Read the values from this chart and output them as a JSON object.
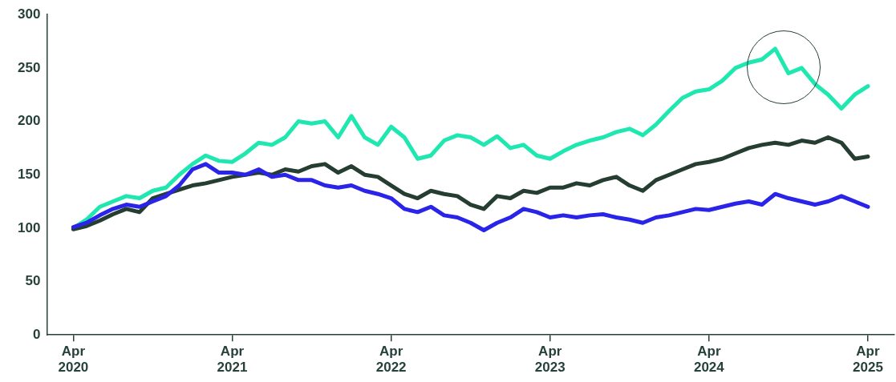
{
  "chart_data": {
    "type": "line",
    "x": [
      "2020-04",
      "2020-05",
      "2020-06",
      "2020-07",
      "2020-08",
      "2020-09",
      "2020-10",
      "2020-11",
      "2020-12",
      "2021-01",
      "2021-02",
      "2021-03",
      "2021-04",
      "2021-05",
      "2021-06",
      "2021-07",
      "2021-08",
      "2021-09",
      "2021-10",
      "2021-11",
      "2021-12",
      "2022-01",
      "2022-02",
      "2022-03",
      "2022-04",
      "2022-05",
      "2022-06",
      "2022-07",
      "2022-08",
      "2022-09",
      "2022-10",
      "2022-11",
      "2022-12",
      "2023-01",
      "2023-02",
      "2023-03",
      "2023-04",
      "2023-05",
      "2023-06",
      "2023-07",
      "2023-08",
      "2023-09",
      "2023-10",
      "2023-11",
      "2023-12",
      "2024-01",
      "2024-02",
      "2024-03",
      "2024-04",
      "2024-05",
      "2024-06",
      "2024-07",
      "2024-08",
      "2024-09",
      "2024-10",
      "2024-11",
      "2024-12",
      "2025-01",
      "2025-02",
      "2025-03",
      "2025-04"
    ],
    "series": [
      {
        "color": "#1ee8b0",
        "values": [
          100,
          108,
          120,
          125,
          130,
          128,
          135,
          138,
          150,
          160,
          168,
          163,
          162,
          170,
          180,
          178,
          185,
          200,
          198,
          200,
          185,
          205,
          185,
          178,
          195,
          185,
          165,
          168,
          182,
          187,
          185,
          178,
          186,
          175,
          178,
          168,
          165,
          172,
          178,
          182,
          185,
          190,
          193,
          187,
          197,
          210,
          222,
          228,
          230,
          238,
          250,
          255,
          258,
          268,
          245,
          250,
          235,
          225,
          212,
          225,
          233
        ]
      },
      {
        "color": "#263d32",
        "values": [
          99,
          102,
          107,
          113,
          118,
          115,
          128,
          132,
          136,
          140,
          142,
          145,
          148,
          150,
          152,
          150,
          155,
          153,
          158,
          160,
          152,
          158,
          150,
          148,
          140,
          132,
          128,
          135,
          132,
          130,
          122,
          118,
          130,
          128,
          135,
          133,
          138,
          138,
          142,
          140,
          145,
          148,
          140,
          135,
          145,
          150,
          155,
          160,
          162,
          165,
          170,
          175,
          178,
          180,
          178,
          182,
          180,
          185,
          180,
          165,
          167
        ]
      },
      {
        "color": "#2a24e8",
        "values": [
          101,
          105,
          112,
          118,
          122,
          120,
          125,
          130,
          140,
          155,
          160,
          152,
          152,
          150,
          155,
          148,
          150,
          145,
          145,
          140,
          138,
          140,
          135,
          132,
          128,
          118,
          115,
          120,
          112,
          110,
          105,
          98,
          105,
          110,
          118,
          115,
          110,
          112,
          110,
          112,
          113,
          110,
          108,
          105,
          110,
          112,
          115,
          118,
          117,
          120,
          123,
          125,
          122,
          132,
          128,
          125,
          122,
          125,
          130,
          125,
          120
        ]
      }
    ],
    "xlim": [
      "2020-02",
      "2025-06"
    ],
    "xticks": [
      {
        "value": "2020-04",
        "label": "Apr 2020"
      },
      {
        "value": "2021-04",
        "label": "Apr 2021"
      },
      {
        "value": "2022-04",
        "label": "Apr 2022"
      },
      {
        "value": "2023-04",
        "label": "Apr 2023"
      },
      {
        "value": "2024-04",
        "label": "Apr 2024"
      },
      {
        "value": "2025-04",
        "label": "Apr 2025"
      }
    ],
    "ylim": [
      0,
      300
    ],
    "yticks": [
      0,
      50,
      100,
      150,
      200,
      250,
      300
    ],
    "marker": "none",
    "line_style": "solid"
  }
}
